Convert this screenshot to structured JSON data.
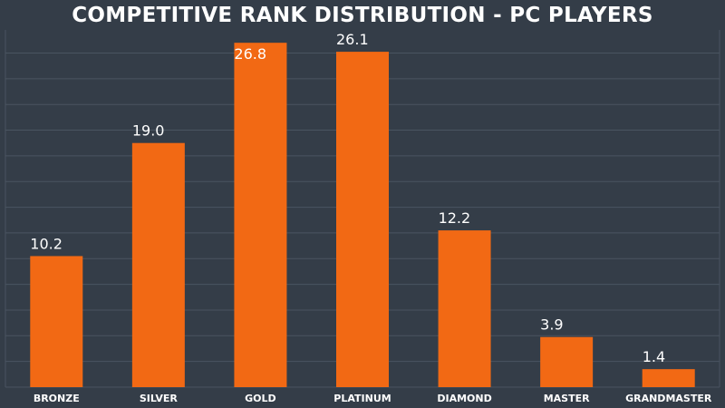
{
  "colors": {
    "background": "#343d48",
    "bar": "#f26914",
    "grid": "#4a5461",
    "text": "#ffffff"
  },
  "chart_data": {
    "type": "bar",
    "title": "COMPETITIVE RANK DISTRIBUTION - PC PLAYERS",
    "xlabel": "",
    "ylabel": "",
    "categories": [
      "BRONZE",
      "SILVER",
      "GOLD",
      "PLATINUM",
      "DIAMOND",
      "MASTER",
      "GRANDMASTER"
    ],
    "values": [
      10.2,
      19.0,
      26.8,
      26.1,
      12.2,
      3.9,
      1.4
    ],
    "ylim": [
      0,
      27.8
    ],
    "grid_step": 2,
    "grid": true,
    "legend": "none"
  }
}
